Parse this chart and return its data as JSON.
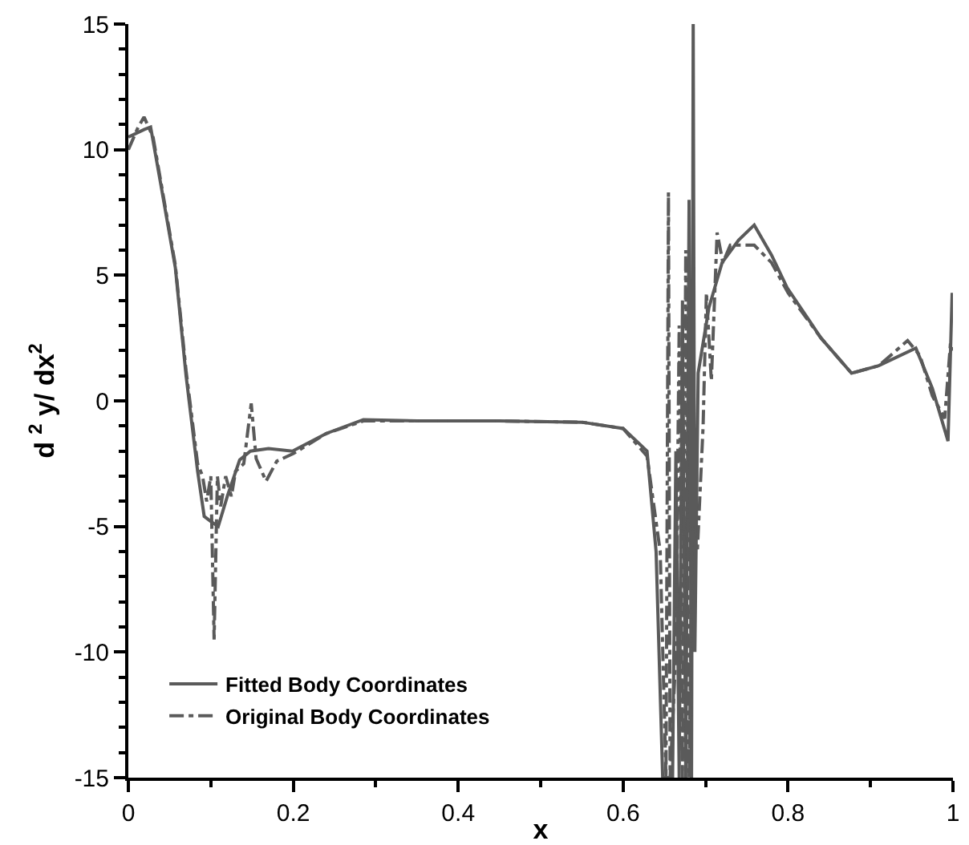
{
  "chart_data": {
    "type": "line",
    "xlabel": "x",
    "ylabel": "d $^{2}$ y/ dx$^{2}$",
    "xlim": [
      0,
      1
    ],
    "ylim": [
      -15,
      15
    ],
    "xticks": [
      0,
      0.2,
      0.4,
      0.6,
      0.8,
      1
    ],
    "yticks": [
      -15,
      -10,
      -5,
      0,
      5,
      10,
      15
    ],
    "grid": false,
    "legend": "bottom left",
    "marker": "none",
    "series": [
      {
        "name": "Fitted Body Coordinates",
        "color": "#5a5a5a",
        "line_style": "solid",
        "x": [
          0,
          0.019,
          0.027,
          0.04,
          0.057,
          0.07,
          0.084,
          0.092,
          0.1,
          0.109,
          0.12,
          0.135,
          0.148,
          0.17,
          0.199,
          0.24,
          0.285,
          0.35,
          0.45,
          0.55,
          0.6,
          0.629,
          0.64,
          0.648,
          0.652,
          0.66,
          0.664,
          0.668,
          0.672,
          0.676,
          0.68,
          0.683,
          0.685,
          0.687,
          0.691,
          0.704,
          0.72,
          0.74,
          0.759,
          0.78,
          0.799,
          0.84,
          0.877,
          0.91,
          0.955,
          0.975,
          0.994,
          0.999
        ],
        "values": [
          10.5,
          10.8,
          10.9,
          8.5,
          5.3,
          1.0,
          -2.8,
          -4.6,
          -4.8,
          -5.0,
          -3.8,
          -2.35,
          -2.0,
          -1.9,
          -2.0,
          -1.3,
          -0.75,
          -0.8,
          -0.8,
          -0.85,
          -1.1,
          -2.0,
          -6,
          -15,
          -15,
          -15,
          -2,
          -15,
          4,
          -15,
          8,
          -15,
          15,
          -10,
          1.1,
          3.7,
          5.5,
          6.4,
          7.0,
          5.8,
          4.5,
          2.5,
          1.1,
          1.4,
          2.1,
          0.5,
          -1.6,
          4.3
        ]
      },
      {
        "name": "Original Body Coordinates",
        "color": "#5a5a5a",
        "line_style": "dashdot",
        "x": [
          0,
          0.012,
          0.019,
          0.03,
          0.057,
          0.07,
          0.084,
          0.09,
          0.095,
          0.1,
          0.104,
          0.108,
          0.112,
          0.118,
          0.125,
          0.13,
          0.14,
          0.149,
          0.155,
          0.167,
          0.18,
          0.2,
          0.24,
          0.285,
          0.35,
          0.45,
          0.55,
          0.6,
          0.629,
          0.645,
          0.652,
          0.655,
          0.657,
          0.664,
          0.668,
          0.672,
          0.676,
          0.68,
          0.684,
          0.69,
          0.697,
          0.701,
          0.707,
          0.714,
          0.721,
          0.73,
          0.759,
          0.78,
          0.8,
          0.84,
          0.877,
          0.91,
          0.945,
          0.96,
          0.975,
          0.99,
          0.997,
          1.0
        ],
        "values": [
          10.0,
          10.9,
          11.3,
          10.5,
          5.4,
          1.2,
          -2.5,
          -3.0,
          -4.0,
          -3.0,
          -9.5,
          -3.0,
          -4.2,
          -3.0,
          -3.8,
          -2.8,
          -2.5,
          -0.1,
          -2.3,
          -3.2,
          -2.4,
          -2.1,
          -1.3,
          -0.8,
          -0.8,
          -0.8,
          -0.85,
          -1.1,
          -2.2,
          -6,
          -15,
          8.3,
          -15,
          -10,
          3,
          -15,
          6,
          -15,
          -5,
          -6,
          -1,
          4.3,
          0.8,
          6.7,
          5.5,
          6.2,
          6.2,
          5.5,
          4.3,
          2.5,
          1.1,
          1.4,
          2.4,
          1.8,
          0.2,
          -0.7,
          2.3,
          2.0
        ]
      }
    ]
  }
}
